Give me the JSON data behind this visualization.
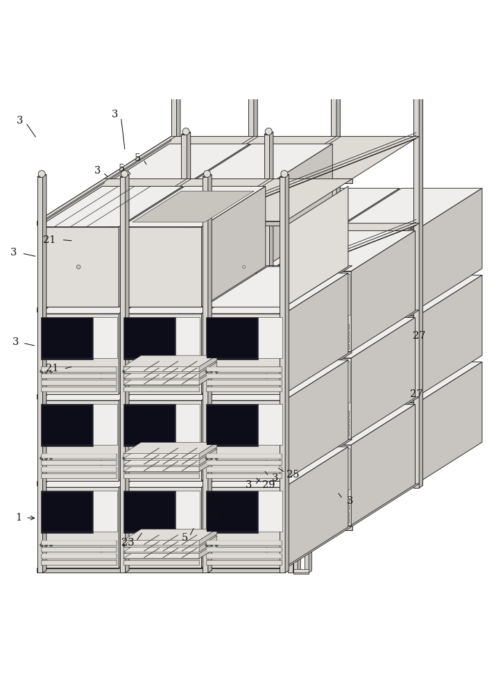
{
  "bg_color": "#ffffff",
  "line_color": "#2a2a2a",
  "face_light": "#f0eeec",
  "face_mid": "#e0ddd8",
  "face_dark": "#c8c5c0",
  "face_side": "#d8d5d0",
  "screen_color": "#1a1a1a",
  "drawer_fill": "#e8e5e0",
  "post_fill": "#d8d5d0",
  "post_side": "#b8b5b0",
  "beam_top": "#dedad4",
  "beam_front": "#c8c5c0",
  "label_fs": 10.5,
  "label_color": "#111111",
  "perspective": {
    "ox": 0.075,
    "oy": 0.045,
    "sx": 0.5,
    "sy": 0.7,
    "zx": 0.3,
    "zy": 0.19
  }
}
